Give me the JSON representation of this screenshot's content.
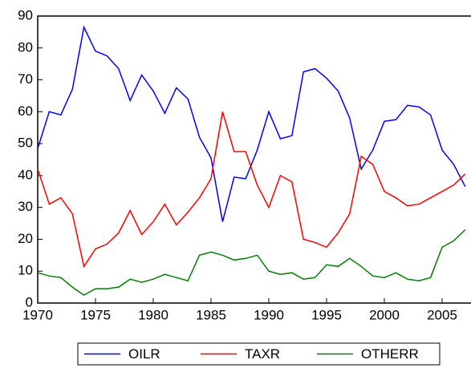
{
  "chart_data": {
    "type": "line",
    "x": [
      1970,
      1971,
      1972,
      1973,
      1974,
      1975,
      1976,
      1977,
      1978,
      1979,
      1980,
      1981,
      1982,
      1983,
      1984,
      1985,
      1986,
      1987,
      1988,
      1989,
      1990,
      1991,
      1992,
      1993,
      1994,
      1995,
      1996,
      1997,
      1998,
      1999,
      2000,
      2001,
      2002,
      2003,
      2004,
      2005,
      2006,
      2007
    ],
    "series": [
      {
        "name": "OILR",
        "color": "#0000ff",
        "values": [
          48.5,
          60,
          59,
          67,
          86.5,
          79,
          77.5,
          73.5,
          63.5,
          71.5,
          66.5,
          59.5,
          67.5,
          64,
          52,
          45.5,
          25.5,
          39.5,
          39,
          48,
          60,
          51.5,
          52.5,
          72.5,
          73.5,
          70.5,
          66.5,
          58,
          42,
          48,
          57,
          57.5,
          62,
          61.5,
          59,
          48,
          43.5,
          36.5
        ]
      },
      {
        "name": "TAXR",
        "color": "#ff0000",
        "values": [
          42,
          31,
          33,
          28,
          11.5,
          17,
          18.5,
          22,
          29,
          21.5,
          25.5,
          31,
          24.5,
          28.5,
          33,
          39,
          60,
          47.5,
          47.5,
          37,
          30,
          40,
          38,
          20,
          19,
          17.5,
          22,
          28,
          46,
          43.5,
          35,
          33,
          30.5,
          31,
          33,
          35,
          37,
          40.5
        ]
      },
      {
        "name": "OTHERR",
        "color": "#008000",
        "values": [
          9.5,
          8.5,
          8,
          5,
          2.5,
          4.5,
          4.5,
          5,
          7.5,
          6.5,
          7.5,
          9,
          8,
          7,
          15,
          16,
          15,
          13.5,
          14,
          15,
          10,
          9,
          9.5,
          7.5,
          8,
          12,
          11.5,
          14,
          11.5,
          8.5,
          8,
          9.5,
          7.5,
          7,
          8,
          17.5,
          19.5,
          23
        ]
      }
    ],
    "xlim": [
      1970,
      2007.5
    ],
    "xticks": [
      1970,
      1975,
      1980,
      1985,
      1990,
      1995,
      2000,
      2005
    ],
    "ylim": [
      0,
      90
    ],
    "yticks": [
      0,
      10,
      20,
      30,
      40,
      50,
      60,
      70,
      80,
      90
    ],
    "legend": "bottom"
  }
}
